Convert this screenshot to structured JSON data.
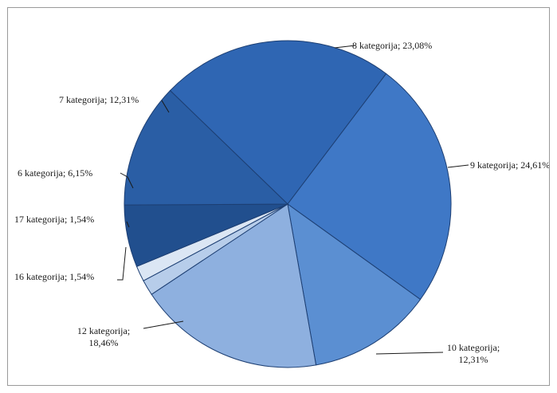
{
  "chart_data": {
    "type": "pie",
    "slices": [
      {
        "label": "8 kategorija; 23,08%",
        "value": 23.08,
        "color": "#2f66b3"
      },
      {
        "label": "9 kategorija; 24,61%",
        "value": 24.61,
        "color": "#3f78c6"
      },
      {
        "label": "10 kategorija;\n12,31%",
        "value": 12.31,
        "color": "#5b8fd2"
      },
      {
        "label": "12 kategorija;\n18,46%",
        "value": 18.46,
        "color": "#8eb0df"
      },
      {
        "label": "16 kategorija; 1,54%",
        "value": 1.54,
        "color": "#b7cdea"
      },
      {
        "label": "17 kategorija; 1,54%",
        "value": 1.54,
        "color": "#dbe6f4"
      },
      {
        "label": "6 kategorija; 6,15%",
        "value": 6.15,
        "color": "#214f8e"
      },
      {
        "label": "7 kategorija; 12,31%",
        "value": 12.31,
        "color": "#2a5ea5"
      }
    ],
    "start_angle_deg": -136,
    "direction": "clockwise",
    "legend": "none",
    "data_labels": "outside with leader lines"
  }
}
